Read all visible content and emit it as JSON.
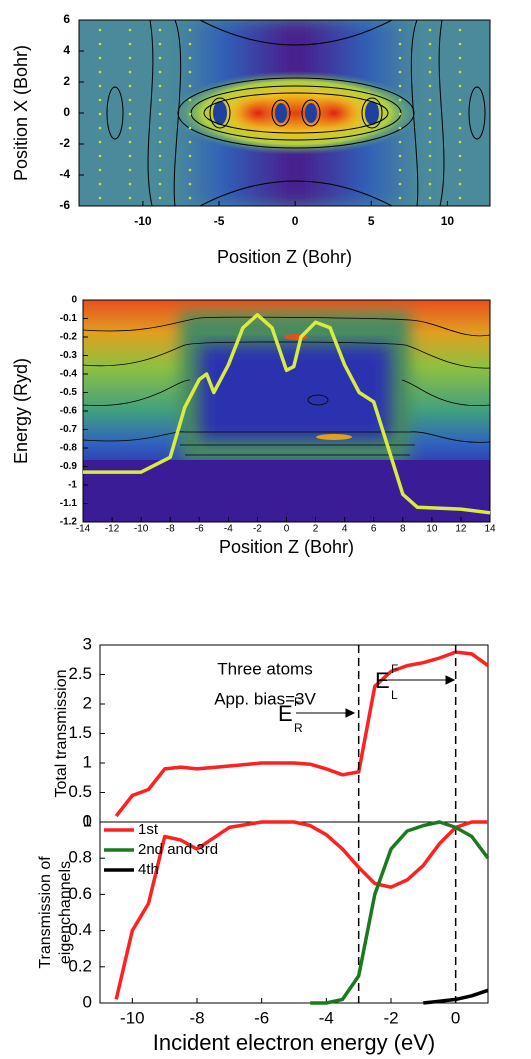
{
  "chart_data": [
    {
      "type": "heatmap",
      "xlabel": "Position Z (Bohr)",
      "ylabel": "Position X (Bohr)",
      "xlim": [
        -14.2,
        12.8
      ],
      "ylim": [
        -6,
        6
      ],
      "xticks": [
        -10,
        -5,
        0,
        5,
        10
      ],
      "yticks": [
        -6,
        -4,
        -2,
        0,
        2,
        4,
        6
      ]
    },
    {
      "type": "line",
      "xlabel": "Position Z (Bohr)",
      "ylabel": "Energy (Ryd)",
      "xlim": [
        -14,
        14
      ],
      "ylim": [
        -1.2,
        0
      ],
      "xticks": [
        -14,
        -12,
        -10,
        -8,
        -6,
        -4,
        -2,
        0,
        2,
        4,
        6,
        8,
        10,
        12,
        14
      ],
      "yticks": [
        -1.2,
        -1.1,
        -1,
        -0.9,
        -0.8,
        -0.7,
        -0.6,
        -0.5,
        -0.4,
        -0.3,
        -0.2,
        -0.1,
        0
      ],
      "x": [
        -14,
        -10,
        -8,
        -7,
        -6,
        -5.5,
        -5,
        -4,
        -3,
        -2,
        -1,
        0,
        0.5,
        1,
        2,
        3,
        4,
        5,
        6,
        7,
        8,
        9,
        12,
        14
      ],
      "series": [
        {
          "color": "#d8ec40",
          "values": [
            -0.93,
            -0.93,
            -0.85,
            -0.58,
            -0.43,
            -0.4,
            -0.5,
            -0.35,
            -0.15,
            -0.08,
            -0.15,
            -0.38,
            -0.36,
            -0.2,
            -0.12,
            -0.15,
            -0.35,
            -0.5,
            -0.55,
            -0.8,
            -1.05,
            -1.12,
            -1.13,
            -1.15
          ]
        }
      ]
    },
    {
      "type": "line",
      "ylabel": "Total transmission",
      "xlim": [
        -11,
        1
      ],
      "ylim": [
        0,
        3
      ],
      "yticks": [
        0,
        0.5,
        1,
        1.5,
        2,
        2.5,
        3
      ],
      "x": [
        -11,
        -10.5,
        -10,
        -9.5,
        -9,
        -8.5,
        -8,
        -7,
        -6,
        -5,
        -4.5,
        -4,
        -3.5,
        -3,
        -2.5,
        -2,
        -1.5,
        -1,
        -0.5,
        0,
        0.5,
        1
      ],
      "series": [
        {
          "color": "#ff2020",
          "values": [
            null,
            0.1,
            0.45,
            0.55,
            0.9,
            0.93,
            0.9,
            0.95,
            1.0,
            1.0,
            0.98,
            0.9,
            0.8,
            0.85,
            2.3,
            2.55,
            2.65,
            2.7,
            2.78,
            2.88,
            2.85,
            2.65
          ]
        }
      ],
      "vlines": [
        -3,
        0
      ],
      "annotations": [
        "Three atoms",
        "App. bias=3V"
      ],
      "fermi_labels": [
        {
          "symbol": "E",
          "sup": "F",
          "sub": "R"
        },
        {
          "symbol": "E",
          "sup": "F",
          "sub": "L"
        }
      ]
    },
    {
      "type": "line",
      "xlabel": "Incident electron energy (eV)",
      "ylabel": [
        "Transmission of",
        "eigenchannels"
      ],
      "xlim": [
        -11,
        1
      ],
      "ylim": [
        0,
        1
      ],
      "xticks": [
        -10,
        -8,
        -6,
        -4,
        -2,
        0
      ],
      "yticks": [
        0,
        0.2,
        0.4,
        0.6,
        0.8,
        1
      ],
      "legend": "upper left",
      "x": [
        -11,
        -10.5,
        -10,
        -9.5,
        -9,
        -8.5,
        -8,
        -7,
        -6,
        -5,
        -4.5,
        -4,
        -3.5,
        -3,
        -2.5,
        -2,
        -1.5,
        -1,
        -0.5,
        0,
        0.5,
        1
      ],
      "series": [
        {
          "name": "1st",
          "color": "#ff2020",
          "values": [
            null,
            0.02,
            0.4,
            0.55,
            0.92,
            0.9,
            0.85,
            0.97,
            1.0,
            1.0,
            0.98,
            0.93,
            0.85,
            0.75,
            0.66,
            0.64,
            0.68,
            0.76,
            0.88,
            0.97,
            1.0,
            1.0
          ]
        },
        {
          "name": "2nd and 3rd",
          "color": "#1a7a20",
          "values": [
            null,
            null,
            null,
            null,
            null,
            null,
            null,
            null,
            null,
            null,
            0,
            0,
            0.02,
            0.15,
            0.6,
            0.85,
            0.95,
            0.98,
            1.0,
            0.97,
            0.92,
            0.8
          ]
        },
        {
          "name": "4th",
          "color": "#000000",
          "values": [
            null,
            null,
            null,
            null,
            null,
            null,
            null,
            null,
            null,
            null,
            null,
            null,
            null,
            null,
            null,
            null,
            null,
            0,
            0.01,
            0.02,
            0.04,
            0.07
          ]
        }
      ]
    }
  ]
}
